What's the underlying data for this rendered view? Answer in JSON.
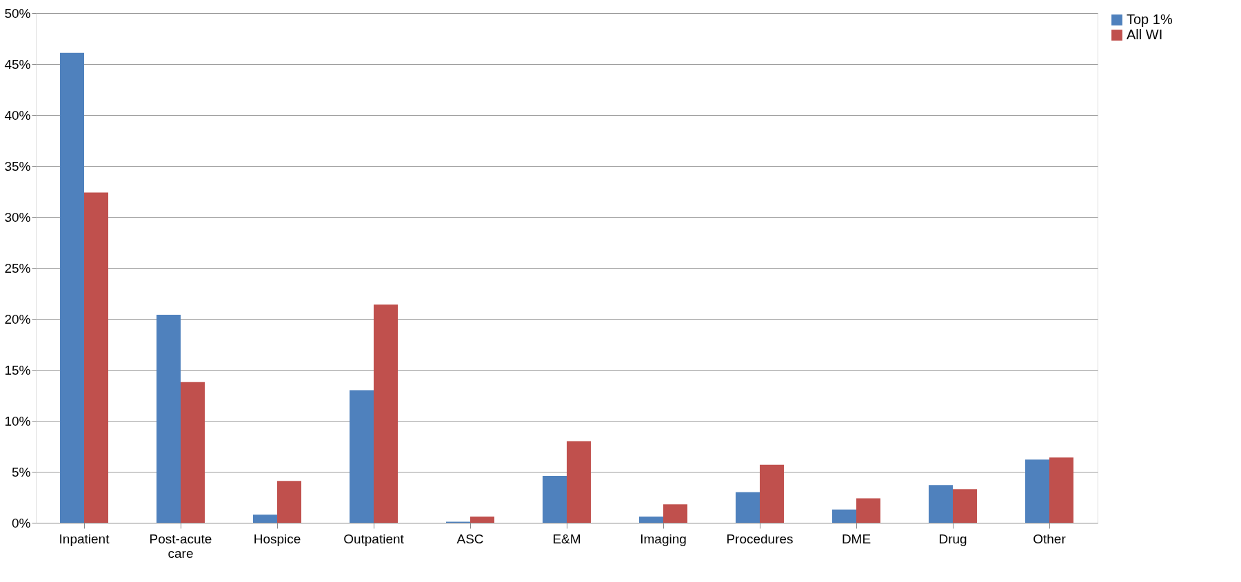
{
  "chart_data": {
    "type": "bar",
    "categories": [
      "Inpatient",
      "Post-acute care",
      "Hospice",
      "Outpatient",
      "ASC",
      "E&M",
      "Imaging",
      "Procedures",
      "DME",
      "Drug",
      "Other"
    ],
    "series": [
      {
        "name": "Top 1%",
        "color": "#4f81bd",
        "values": [
          46.1,
          20.4,
          0.8,
          13.0,
          0.1,
          4.6,
          0.6,
          3.0,
          1.3,
          3.7,
          6.2
        ]
      },
      {
        "name": "All WI",
        "color": "#c0504d",
        "values": [
          32.4,
          13.8,
          4.1,
          21.4,
          0.6,
          8.0,
          1.8,
          5.7,
          2.4,
          3.3,
          6.4
        ]
      }
    ],
    "ylim": [
      0,
      50
    ],
    "yticks": [
      {
        "value": 0,
        "label": "0%"
      },
      {
        "value": 5,
        "label": "5%"
      },
      {
        "value": 10,
        "label": "10%"
      },
      {
        "value": 15,
        "label": "15%"
      },
      {
        "value": 20,
        "label": "20%"
      },
      {
        "value": 25,
        "label": "25%"
      },
      {
        "value": 30,
        "label": "30%"
      },
      {
        "value": 35,
        "label": "35%"
      },
      {
        "value": 40,
        "label": "40%"
      },
      {
        "value": 45,
        "label": "45%"
      },
      {
        "value": 50,
        "label": "50%"
      }
    ],
    "grid": "y",
    "legend": "right"
  }
}
